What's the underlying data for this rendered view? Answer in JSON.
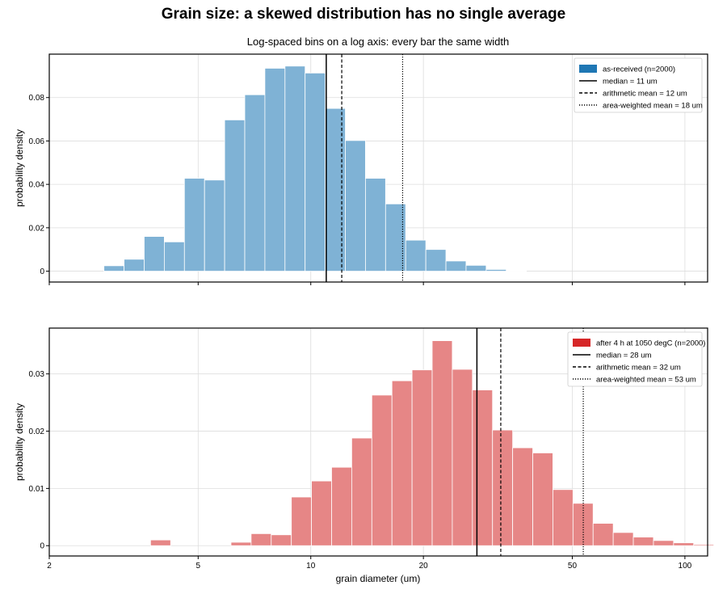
{
  "figure": {
    "title": "Grain size: a skewed distribution has no single average",
    "subtitle": "Log-spaced bins on a log axis: every bar the same width",
    "xlabel": "grain diameter (um)"
  },
  "chart_data": [
    {
      "type": "bar",
      "panel": "top",
      "ylabel": "probability density",
      "x_scale": "log",
      "xlim": [
        2,
        115
      ],
      "ylim": [
        -0.005,
        0.1
      ],
      "xticks": [
        {
          "v": 2,
          "label": "2"
        },
        {
          "v": 5,
          "label": "5"
        },
        {
          "v": 10,
          "label": "10"
        },
        {
          "v": 20,
          "label": "20"
        },
        {
          "v": 50,
          "label": "50"
        },
        {
          "v": 100,
          "label": "100"
        }
      ],
      "yticks": [
        {
          "v": 0,
          "label": "0"
        },
        {
          "v": 0.02,
          "label": "0.02"
        },
        {
          "v": 0.04,
          "label": "0.04"
        },
        {
          "v": 0.06,
          "label": "0.06"
        },
        {
          "v": 0.08,
          "label": "0.08"
        }
      ],
      "show_xtick_labels": false,
      "grid": true,
      "bar_color": "#7fb2d5",
      "legend_swatch": "#1f77b4",
      "series_name": "as-received (n=2000)",
      "bin_start": 2.8,
      "bin_ratio": 1.1318,
      "values": [
        0.0025,
        0.0055,
        0.016,
        0.0135,
        0.0428,
        0.042,
        0.0697,
        0.0813,
        0.0935,
        0.0945,
        0.0913,
        0.075,
        0.0602,
        0.0428,
        0.031,
        0.0143,
        0.01,
        0.0047,
        0.0027,
        0.0008,
        0.0003
      ],
      "lines": [
        {
          "label": "median = 11 um",
          "x": 11,
          "style": "solid"
        },
        {
          "label": "arithmetic mean = 12 um",
          "x": 12.1,
          "style": "dashed"
        },
        {
          "label": "area-weighted mean = 18 um",
          "x": 17.6,
          "style": "dotted"
        }
      ],
      "legend_position": "top-right"
    },
    {
      "type": "bar",
      "panel": "bottom",
      "ylabel": "probability density",
      "x_scale": "log",
      "xlim": [
        2,
        115
      ],
      "ylim": [
        -0.0018,
        0.038
      ],
      "xticks": [
        {
          "v": 2,
          "label": "2"
        },
        {
          "v": 5,
          "label": "5"
        },
        {
          "v": 10,
          "label": "10"
        },
        {
          "v": 20,
          "label": "20"
        },
        {
          "v": 50,
          "label": "50"
        },
        {
          "v": 100,
          "label": "100"
        }
      ],
      "yticks": [
        {
          "v": 0,
          "label": "0"
        },
        {
          "v": 0.01,
          "label": "0.01"
        },
        {
          "v": 0.02,
          "label": "0.02"
        },
        {
          "v": 0.03,
          "label": "0.03"
        }
      ],
      "show_xtick_labels": true,
      "grid": true,
      "bar_color": "#e68686",
      "legend_swatch": "#d62728",
      "series_name": "after 4 h at 1050 degC (n=2000)",
      "bin_start": 3.73,
      "bin_ratio": 1.1318,
      "values": [
        0.001,
        0,
        0,
        0,
        0.0006,
        0.0021,
        0.0019,
        0.0085,
        0.0113,
        0.0137,
        0.0188,
        0.0263,
        0.0288,
        0.0307,
        0.0358,
        0.0308,
        0.0272,
        0.0202,
        0.0171,
        0.0162,
        0.0098,
        0.0074,
        0.0039,
        0.0023,
        0.0015,
        0.0009,
        0.0005,
        0.0002
      ],
      "lines": [
        {
          "label": "median = 28 um",
          "x": 27.8,
          "style": "solid"
        },
        {
          "label": "arithmetic mean = 32 um",
          "x": 32.2,
          "style": "dashed"
        },
        {
          "label": "area-weighted mean = 53 um",
          "x": 53.5,
          "style": "dotted"
        }
      ],
      "legend_position": "top-right"
    }
  ]
}
